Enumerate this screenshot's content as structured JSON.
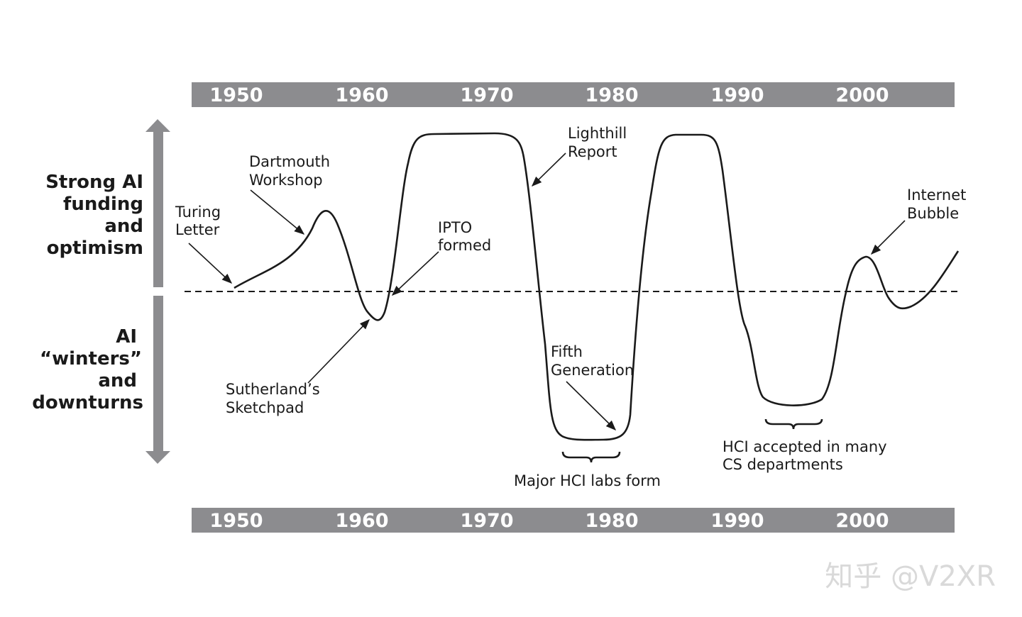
{
  "years": [
    "1950",
    "1960",
    "1970",
    "1980",
    "1990",
    "2000"
  ],
  "upper_label": [
    "Strong AI",
    "funding",
    "and",
    "optimism"
  ],
  "lower_label": [
    "AI",
    "“winters”",
    "and",
    "downturns"
  ],
  "annotations": {
    "turing": [
      "Turing",
      "Letter"
    ],
    "dartmouth": [
      "Dartmouth",
      "Workshop"
    ],
    "ipto": [
      "IPTO",
      "formed"
    ],
    "lighthill": [
      "Lighthill",
      "Report"
    ],
    "sutherland": [
      "Sutherland’s",
      "Sketchpad"
    ],
    "fifth_gen": [
      "Fifth",
      "Generation"
    ],
    "internet": [
      "Internet",
      "Bubble"
    ],
    "hci_labs": [
      "Major HCI labs form"
    ],
    "hci_cs": [
      "HCI accepted in many",
      "CS departments"
    ]
  },
  "watermark": "知乎 @V2XR",
  "colors": {
    "band": "#8c8c8f",
    "line": "#1a1a1a",
    "watermark": "#d9d9d9"
  }
}
